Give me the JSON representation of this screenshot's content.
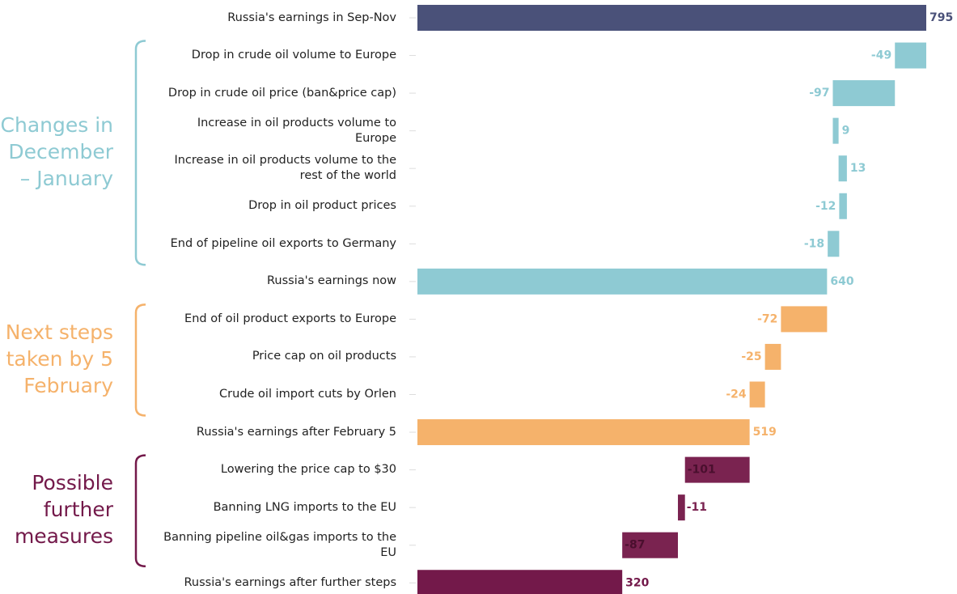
{
  "chart_data": {
    "type": "waterfall",
    "categories": [
      "Russia's earnings in Sep-Nov",
      "Drop in crude oil volume to Europe",
      "Drop in crude oil price (ban&price cap)",
      "Increase in oil products volume to Europe",
      "Increase in oil products volume to the rest of the world",
      "Drop in oil product prices",
      "End of pipeline oil exports to Germany",
      "Russia's earnings now",
      "End of oil product exports to Europe",
      "Price cap on oil products",
      "Crude oil import cuts by Orlen",
      "Russia's earnings after February 5",
      "Lowering the price cap to $30",
      "Banning LNG imports to the EU",
      "Banning pipeline oil&gas imports to the EU",
      "Russia's earnings after further steps"
    ],
    "values": [
      795,
      -49,
      -97,
      9,
      13,
      -12,
      -18,
      640,
      -72,
      -25,
      -24,
      519,
      -101,
      -11,
      -87,
      320
    ],
    "colors": [
      "#4a5179",
      "#8ecad3",
      "#8ecad3",
      "#8ecad3",
      "#8ecad3",
      "#8ecad3",
      "#8ecad3",
      "#8ecad3",
      "#f5b26b",
      "#f5b26b",
      "#f5b26b",
      "#f5b26b",
      "#7a2350",
      "#7a2350",
      "#7a2350",
      "#73194a"
    ],
    "totals": [
      0,
      7,
      11,
      15
    ],
    "groups": [
      {
        "lines": [
          "Changes in",
          "December",
          "– January"
        ],
        "color": "#8ecad3",
        "rows": [
          1,
          6
        ]
      },
      {
        "lines": [
          "Next steps",
          "taken by 5",
          "February"
        ],
        "color": "#f5b26b",
        "rows": [
          8,
          10
        ]
      },
      {
        "lines": [
          "Possible",
          "further",
          "measures"
        ],
        "color": "#73194a",
        "rows": [
          12,
          14
        ]
      }
    ]
  }
}
